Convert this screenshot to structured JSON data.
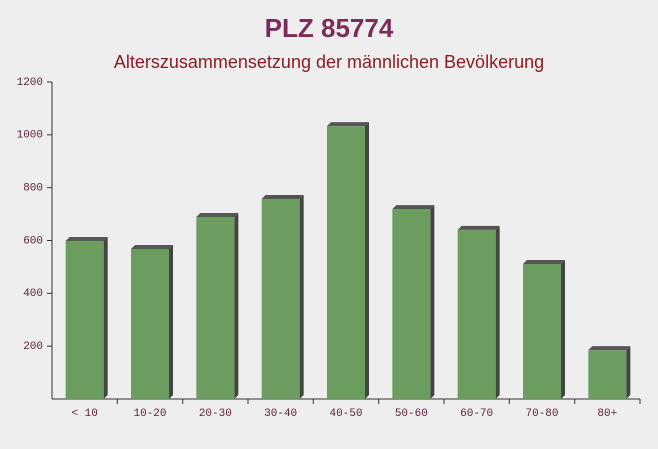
{
  "chart_data": {
    "type": "bar",
    "title": "PLZ 85774",
    "subtitle": "Alterszusammensetzung der männlichen Bevölkerung",
    "categories": [
      "< 10",
      "10-20",
      "20-30",
      "30-40",
      "40-50",
      "50-60",
      "60-70",
      "70-80",
      "80+"
    ],
    "values": [
      598,
      568,
      689,
      757,
      1033,
      719,
      640,
      511,
      185
    ],
    "color": "#6b9e5e",
    "ylim": [
      0,
      1200
    ],
    "yticks": [
      200,
      400,
      600,
      800,
      1000,
      1200
    ]
  }
}
